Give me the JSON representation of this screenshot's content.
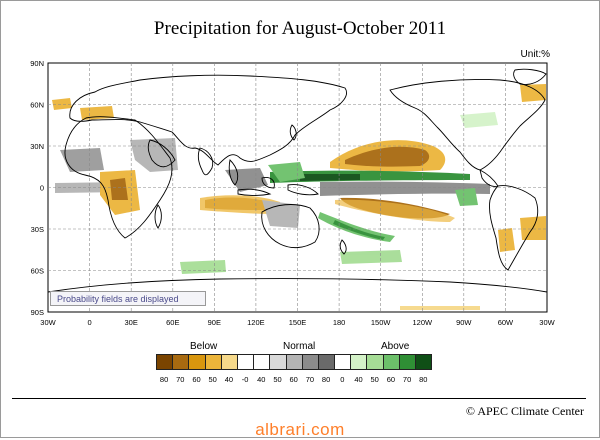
{
  "title": "Precipitation for August-October 2011",
  "unit": "Unit:%",
  "note": "Probability fields are displayed",
  "credit": "© APEC Climate Center",
  "watermark": "albrari.com",
  "lat_labels": [
    "90N",
    "60N",
    "30N",
    "0",
    "30S",
    "60S",
    "90S"
  ],
  "lon_labels": [
    "30W",
    "0",
    "30E",
    "60E",
    "90E",
    "120E",
    "150E",
    "180",
    "150W",
    "120W",
    "90W",
    "60W",
    "30W"
  ],
  "legend": {
    "groups": [
      "Below",
      "Normal",
      "Above"
    ],
    "labels": [
      "80",
      "70",
      "60",
      "50",
      "40",
      "-0",
      "40",
      "50",
      "60",
      "70",
      "80",
      "0",
      "40",
      "50",
      "60",
      "70",
      "80"
    ],
    "colors": [
      "#7a4400",
      "#a86a10",
      "#d8960e",
      "#ecb53a",
      "#f6d98a",
      "#ffffff",
      "#ffffff",
      "#d9d9d9",
      "#b4b4b4",
      "#8c8c8c",
      "#6a6a6a",
      "#ffffff",
      "#d4f2c8",
      "#a6dd96",
      "#6cc06a",
      "#2f8f35",
      "#0f4f16"
    ]
  },
  "colors": {
    "brown": "#a86a10",
    "orange": "#ecb53a",
    "gray": "#9a9a9a",
    "green": "#6cc06a",
    "darkgreen": "#2f8f35",
    "coast": "#000000"
  }
}
